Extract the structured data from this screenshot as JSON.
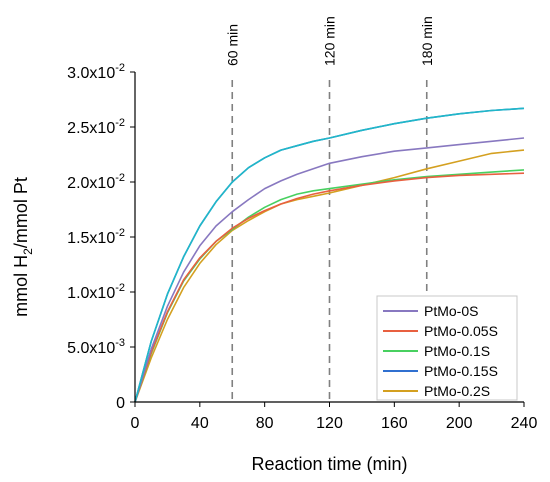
{
  "chart_data": {
    "type": "line",
    "xlabel": "Reaction time (min)",
    "ylabel_parts": {
      "pre": "mmol H",
      "sub": "2",
      "post": "/mmol Pt"
    },
    "xlim": [
      0,
      240
    ],
    "ylim": [
      0,
      0.03
    ],
    "x_ticks": [
      0,
      40,
      80,
      120,
      160,
      200,
      240
    ],
    "x_tick_labels": [
      "0",
      "40",
      "80",
      "120",
      "160",
      "200",
      "240"
    ],
    "y_ticks": [
      0,
      0.005,
      0.01,
      0.015,
      0.02,
      0.025,
      0.03
    ],
    "y_tick_labels": [
      {
        "mant": "0",
        "exp": ""
      },
      {
        "mant": "5.0x10",
        "exp": "-3"
      },
      {
        "mant": "1.0x10",
        "exp": "-2"
      },
      {
        "mant": "1.5x10",
        "exp": "-2"
      },
      {
        "mant": "2.0x10",
        "exp": "-2"
      },
      {
        "mant": "2.5x10",
        "exp": "-2"
      },
      {
        "mant": "3.0x10",
        "exp": "-2"
      }
    ],
    "vlines": [
      {
        "x": 60,
        "label": "60 min"
      },
      {
        "x": 120,
        "label": "120 min"
      },
      {
        "x": 180,
        "label": "180 min"
      }
    ],
    "grid": false,
    "legend_position": "bottom-right",
    "x": [
      0,
      10,
      20,
      30,
      40,
      50,
      60,
      70,
      80,
      90,
      100,
      110,
      120,
      140,
      160,
      180,
      200,
      220,
      240
    ],
    "series": [
      {
        "name": "PtMo-0S",
        "color": "#8878c0",
        "values": [
          0,
          0.0048,
          0.0087,
          0.0118,
          0.0142,
          0.016,
          0.0173,
          0.0184,
          0.0194,
          0.0201,
          0.0207,
          0.0212,
          0.0217,
          0.0223,
          0.0228,
          0.0231,
          0.0234,
          0.0237,
          0.024
        ]
      },
      {
        "name": "PtMo-0.05S",
        "color": "#e86040",
        "values": [
          0,
          0.0045,
          0.0082,
          0.0111,
          0.0131,
          0.0146,
          0.0158,
          0.0167,
          0.0174,
          0.018,
          0.0185,
          0.0189,
          0.0192,
          0.0197,
          0.0201,
          0.0204,
          0.0206,
          0.0207,
          0.0208
        ]
      },
      {
        "name": "PtMo-0.1S",
        "color": "#48d060",
        "values": [
          0,
          0.0044,
          0.0081,
          0.011,
          0.013,
          0.0146,
          0.0157,
          0.0168,
          0.0177,
          0.0184,
          0.0189,
          0.0192,
          0.0194,
          0.0198,
          0.0202,
          0.0205,
          0.0207,
          0.0209,
          0.0211
        ]
      },
      {
        "name": "PtMo-0.15S",
        "color": "#3070d0",
        "values": [
          0,
          0.0055,
          0.0098,
          0.0132,
          0.016,
          0.0182,
          0.02,
          0.0213,
          0.0222,
          0.0229,
          0.0233,
          0.0237,
          0.024,
          0.0247,
          0.0253,
          0.0258,
          0.0262,
          0.0265,
          0.0267
        ]
      },
      {
        "name": "PtMo-0.2S",
        "color": "#d4a020",
        "values": [
          0,
          0.004,
          0.0075,
          0.0104,
          0.0126,
          0.0143,
          0.0156,
          0.0165,
          0.0173,
          0.018,
          0.0184,
          0.0187,
          0.019,
          0.0197,
          0.0204,
          0.0212,
          0.0219,
          0.0226,
          0.0229
        ]
      },
      {
        "name": "",
        "color": "#20b8c8",
        "values": [
          0,
          0.0055,
          0.0098,
          0.0132,
          0.016,
          0.0182,
          0.02,
          0.0213,
          0.0222,
          0.0229,
          0.0233,
          0.0237,
          0.024,
          0.0247,
          0.0253,
          0.0258,
          0.0262,
          0.0265,
          0.0267
        ]
      }
    ]
  }
}
